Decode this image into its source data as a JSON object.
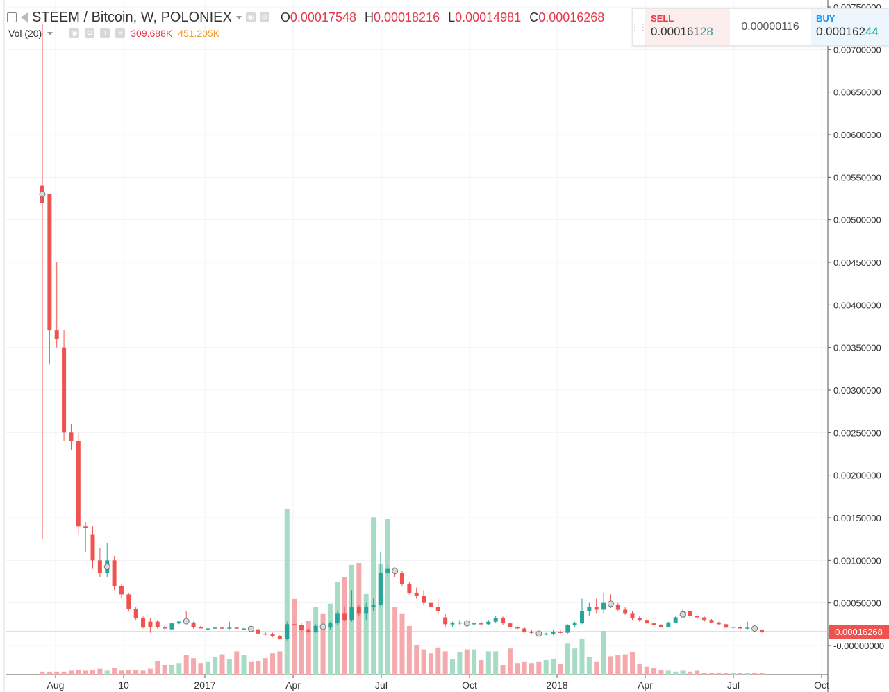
{
  "header": {
    "symbol": "STEEM / Bitcoin, W, POLONIEX",
    "open_label": "O",
    "open": "0.00017548",
    "high_label": "H",
    "high": "0.00018216",
    "low_label": "L",
    "low": "0.00014981",
    "close_label": "C",
    "close": "0.00016268"
  },
  "volume_legend": {
    "label": "Vol (20)",
    "value": "309.688K",
    "ma": "451.205K"
  },
  "trade_panel": {
    "sell_label": "SELL",
    "sell_price_main": "0.000161",
    "sell_price_hl": "28",
    "spread": "0.00000116",
    "buy_label": "BUY",
    "buy_price_main": "0.000162",
    "buy_price_hl": "44"
  },
  "last_price_tag": "0.00016268",
  "colors": {
    "up": "#26a69a",
    "down": "#ef5350",
    "up_vol": "#a7dcc4",
    "down_vol": "#f4a9ad",
    "ma_line": "#f5a25d",
    "text_red": "#e5394a",
    "text_orange": "#f0972a"
  },
  "chart_data": {
    "type": "candlestick",
    "title": "STEEM / Bitcoin, W, POLONIEX",
    "x_ticks": [
      "Aug",
      "10",
      "2017",
      "Apr",
      "Jul",
      "Oct",
      "2018",
      "Apr",
      "Jul",
      "Oct"
    ],
    "y_ticks": [
      "0.00750000",
      "0.00700000",
      "0.00650000",
      "0.00600000",
      "0.00550000",
      "0.00500000",
      "0.00450000",
      "0.00400000",
      "0.00350000",
      "0.00300000",
      "0.00250000",
      "0.00200000",
      "0.00150000",
      "0.00100000",
      "0.00050000",
      "-0.00000000"
    ],
    "ylim": [
      -0.0003,
      0.0075
    ],
    "bars": [
      {
        "o": 0.0054,
        "h": 0.0073,
        "l": 0.00125,
        "c": 0.0052
      },
      {
        "o": 0.0053,
        "h": 0.0053,
        "l": 0.0033,
        "c": 0.0037
      },
      {
        "o": 0.0037,
        "h": 0.0045,
        "l": 0.0035,
        "c": 0.0036
      },
      {
        "o": 0.0035,
        "h": 0.0037,
        "l": 0.0024,
        "c": 0.0025
      },
      {
        "o": 0.0025,
        "h": 0.0026,
        "l": 0.0023,
        "c": 0.0024
      },
      {
        "o": 0.0024,
        "h": 0.0025,
        "l": 0.0013,
        "c": 0.0014
      },
      {
        "o": 0.0014,
        "h": 0.00145,
        "l": 0.0011,
        "c": 0.00138
      },
      {
        "o": 0.0013,
        "h": 0.0014,
        "l": 0.0009,
        "c": 0.001
      },
      {
        "o": 0.001,
        "h": 0.00115,
        "l": 0.0008,
        "c": 0.00085
      },
      {
        "o": 0.00085,
        "h": 0.0012,
        "l": 0.0008,
        "c": 0.001
      },
      {
        "o": 0.001,
        "h": 0.00105,
        "l": 0.00065,
        "c": 0.0007
      },
      {
        "o": 0.0007,
        "h": 0.00072,
        "l": 0.00055,
        "c": 0.0006
      },
      {
        "o": 0.0006,
        "h": 0.00062,
        "l": 0.0004,
        "c": 0.00043
      },
      {
        "o": 0.00043,
        "h": 0.00045,
        "l": 0.0003,
        "c": 0.00032
      },
      {
        "o": 0.00032,
        "h": 0.00034,
        "l": 0.0002,
        "c": 0.00022
      },
      {
        "o": 0.00028,
        "h": 0.00032,
        "l": 0.00015,
        "c": 0.00022
      },
      {
        "o": 0.00028,
        "h": 0.0003,
        "l": 0.0002,
        "c": 0.00022
      },
      {
        "o": 0.00022,
        "h": 0.00024,
        "l": 0.00018,
        "c": 0.0002
      },
      {
        "o": 0.00019,
        "h": 0.00028,
        "l": 0.00018,
        "c": 0.00026
      },
      {
        "o": 0.00026,
        "h": 0.00029,
        "l": 0.00025,
        "c": 0.00028
      },
      {
        "o": 0.0003,
        "h": 0.0004,
        "l": 0.00026,
        "c": 0.00027
      },
      {
        "o": 0.00027,
        "h": 0.00028,
        "l": 0.0002,
        "c": 0.00022
      },
      {
        "o": 0.00022,
        "h": 0.00023,
        "l": 0.0002,
        "c": 0.0002
      },
      {
        "o": 0.0002,
        "h": 0.00021,
        "l": 0.00018,
        "c": 0.0002
      },
      {
        "o": 0.0002,
        "h": 0.00022,
        "l": 0.00019,
        "c": 0.00021
      },
      {
        "o": 0.00021,
        "h": 0.00022,
        "l": 0.0002,
        "c": 0.0002
      },
      {
        "o": 0.0002,
        "h": 0.00028,
        "l": 0.00019,
        "c": 0.00021
      },
      {
        "o": 0.00021,
        "h": 0.00022,
        "l": 0.0002,
        "c": 0.0002
      },
      {
        "o": 0.0002,
        "h": 0.00021,
        "l": 0.00019,
        "c": 0.0002
      },
      {
        "o": 0.0002,
        "h": 0.00021,
        "l": 0.00018,
        "c": 0.00019
      },
      {
        "o": 0.00019,
        "h": 0.0002,
        "l": 0.00013,
        "c": 0.00014
      },
      {
        "o": 0.00014,
        "h": 0.00016,
        "l": 0.00012,
        "c": 0.00013
      },
      {
        "o": 0.00013,
        "h": 0.00015,
        "l": 0.0001,
        "c": 0.00011
      },
      {
        "o": 0.00011,
        "h": 0.00012,
        "l": 7e-05,
        "c": 8e-05
      },
      {
        "o": 8e-05,
        "h": 0.00028,
        "l": 6e-05,
        "c": 0.00025
      },
      {
        "o": 0.00025,
        "h": 0.00035,
        "l": 0.00022,
        "c": 0.00024
      },
      {
        "o": 0.00024,
        "h": 0.00026,
        "l": 0.00016,
        "c": 0.00018
      },
      {
        "o": 0.00018,
        "h": 0.0002,
        "l": 0.00015,
        "c": 0.00016
      },
      {
        "o": 0.00016,
        "h": 0.00025,
        "l": 0.00015,
        "c": 0.00023
      },
      {
        "o": 0.00023,
        "h": 0.00025,
        "l": 0.00019,
        "c": 0.00021
      },
      {
        "o": 0.00021,
        "h": 0.00028,
        "l": 0.00019,
        "c": 0.00026
      },
      {
        "o": 0.00026,
        "h": 0.0004,
        "l": 0.00024,
        "c": 0.00038
      },
      {
        "o": 0.00038,
        "h": 0.00045,
        "l": 0.00028,
        "c": 0.0003
      },
      {
        "o": 0.0003,
        "h": 0.00065,
        "l": 0.00028,
        "c": 0.00045
      },
      {
        "o": 0.00045,
        "h": 0.00048,
        "l": 0.00035,
        "c": 0.00038
      },
      {
        "o": 0.00038,
        "h": 0.0005,
        "l": 0.0003,
        "c": 0.00045
      },
      {
        "o": 0.00045,
        "h": 0.00055,
        "l": 0.0004,
        "c": 0.00048
      },
      {
        "o": 0.00048,
        "h": 0.0011,
        "l": 0.00045,
        "c": 0.00085
      },
      {
        "o": 0.00085,
        "h": 0.00095,
        "l": 0.0008,
        "c": 0.0009
      },
      {
        "o": 0.0009,
        "h": 0.00092,
        "l": 0.0008,
        "c": 0.00085
      },
      {
        "o": 0.00085,
        "h": 0.00088,
        "l": 0.0007,
        "c": 0.00072
      },
      {
        "o": 0.00072,
        "h": 0.00075,
        "l": 0.0006,
        "c": 0.00062
      },
      {
        "o": 0.00062,
        "h": 0.00068,
        "l": 0.00055,
        "c": 0.00058
      },
      {
        "o": 0.00058,
        "h": 0.00065,
        "l": 0.00048,
        "c": 0.0005
      },
      {
        "o": 0.0005,
        "h": 0.00058,
        "l": 0.00035,
        "c": 0.00045
      },
      {
        "o": 0.00045,
        "h": 0.00055,
        "l": 0.00036,
        "c": 0.0004
      },
      {
        "o": 0.00033,
        "h": 0.00037,
        "l": 0.00022,
        "c": 0.00025
      },
      {
        "o": 0.00025,
        "h": 0.00028,
        "l": 0.00022,
        "c": 0.00026
      },
      {
        "o": 0.00026,
        "h": 0.0003,
        "l": 0.00024,
        "c": 0.00027
      },
      {
        "o": 0.00027,
        "h": 0.0003,
        "l": 0.00024,
        "c": 0.00025
      },
      {
        "o": 0.00025,
        "h": 0.0003,
        "l": 0.00022,
        "c": 0.00026
      },
      {
        "o": 0.00026,
        "h": 0.00028,
        "l": 0.00024,
        "c": 0.00025
      },
      {
        "o": 0.00025,
        "h": 0.0003,
        "l": 0.00024,
        "c": 0.00028
      },
      {
        "o": 0.00028,
        "h": 0.00035,
        "l": 0.00026,
        "c": 0.00032
      },
      {
        "o": 0.00032,
        "h": 0.00034,
        "l": 0.00024,
        "c": 0.00026
      },
      {
        "o": 0.00026,
        "h": 0.00028,
        "l": 0.0002,
        "c": 0.00022
      },
      {
        "o": 0.00022,
        "h": 0.00024,
        "l": 0.00018,
        "c": 0.0002
      },
      {
        "o": 0.0002,
        "h": 0.00022,
        "l": 0.00015,
        "c": 0.00016
      },
      {
        "o": 0.00016,
        "h": 0.00018,
        "l": 0.00014,
        "c": 0.00015
      },
      {
        "o": 0.00015,
        "h": 0.00016,
        "l": 0.00012,
        "c": 0.00013
      },
      {
        "o": 0.00013,
        "h": 0.00015,
        "l": 0.00012,
        "c": 0.00014
      },
      {
        "o": 0.00014,
        "h": 0.00018,
        "l": 0.00012,
        "c": 0.00016
      },
      {
        "o": 0.00016,
        "h": 0.00018,
        "l": 0.00013,
        "c": 0.00015
      },
      {
        "o": 0.00015,
        "h": 0.00025,
        "l": 0.00014,
        "c": 0.00024
      },
      {
        "o": 0.00024,
        "h": 0.00028,
        "l": 0.00022,
        "c": 0.00026
      },
      {
        "o": 0.00026,
        "h": 0.00055,
        "l": 0.00025,
        "c": 0.0004
      },
      {
        "o": 0.0004,
        "h": 0.0005,
        "l": 0.00035,
        "c": 0.00045
      },
      {
        "o": 0.00045,
        "h": 0.00055,
        "l": 0.00038,
        "c": 0.00042
      },
      {
        "o": 0.00042,
        "h": 0.00062,
        "l": 0.00038,
        "c": 0.0005
      },
      {
        "o": 0.0005,
        "h": 0.0006,
        "l": 0.00044,
        "c": 0.00048
      },
      {
        "o": 0.00048,
        "h": 0.0005,
        "l": 0.0004,
        "c": 0.00042
      },
      {
        "o": 0.00042,
        "h": 0.00045,
        "l": 0.00036,
        "c": 0.00038
      },
      {
        "o": 0.00038,
        "h": 0.0004,
        "l": 0.0003,
        "c": 0.00032
      },
      {
        "o": 0.00032,
        "h": 0.00035,
        "l": 0.00028,
        "c": 0.0003
      },
      {
        "o": 0.0003,
        "h": 0.00032,
        "l": 0.00025,
        "c": 0.00026
      },
      {
        "o": 0.00026,
        "h": 0.00028,
        "l": 0.00023,
        "c": 0.00024
      },
      {
        "o": 0.00024,
        "h": 0.00025,
        "l": 0.00021,
        "c": 0.00022
      },
      {
        "o": 0.00022,
        "h": 0.00028,
        "l": 0.00021,
        "c": 0.00027
      },
      {
        "o": 0.00027,
        "h": 0.00034,
        "l": 0.00026,
        "c": 0.00033
      },
      {
        "o": 0.00033,
        "h": 0.00042,
        "l": 0.00032,
        "c": 0.0004
      },
      {
        "o": 0.0004,
        "h": 0.00042,
        "l": 0.00033,
        "c": 0.00035
      },
      {
        "o": 0.00035,
        "h": 0.00037,
        "l": 0.00031,
        "c": 0.00033
      },
      {
        "o": 0.00033,
        "h": 0.00034,
        "l": 0.00028,
        "c": 0.0003
      },
      {
        "o": 0.0003,
        "h": 0.00031,
        "l": 0.00026,
        "c": 0.00027
      },
      {
        "o": 0.00027,
        "h": 0.00028,
        "l": 0.00024,
        "c": 0.00025
      },
      {
        "o": 0.00025,
        "h": 0.00026,
        "l": 0.0002,
        "c": 0.00021
      },
      {
        "o": 0.00021,
        "h": 0.00023,
        "l": 0.00019,
        "c": 0.00022
      },
      {
        "o": 0.00022,
        "h": 0.00023,
        "l": 0.00019,
        "c": 0.0002
      },
      {
        "o": 0.0002,
        "h": 0.00028,
        "l": 0.00019,
        "c": 0.00021
      },
      {
        "o": 0.00021,
        "h": 0.00022,
        "l": 0.00018,
        "c": 0.00019
      },
      {
        "o": 0.00018,
        "h": 0.00019,
        "l": 0.00015,
        "c": 0.00016
      }
    ],
    "volume_ma": [],
    "last_price": 0.00016268
  }
}
